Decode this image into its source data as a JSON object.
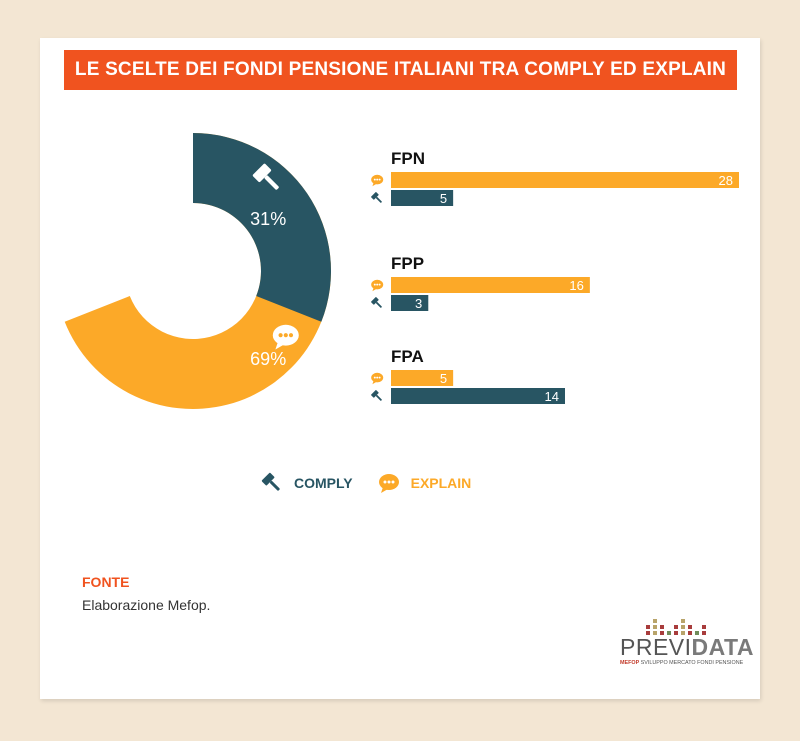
{
  "title": "LE SCELTE DEI FONDI PENSIONE ITALIANI TRA COMPLY ED EXPLAIN",
  "colors": {
    "comply": "#285563",
    "explain": "#fca928",
    "accent": "#f0531f"
  },
  "chart_data": [
    {
      "type": "pie",
      "slices": [
        {
          "name": "COMPLY",
          "value": 31,
          "label": "31%",
          "icon": "gavel-icon"
        },
        {
          "name": "EXPLAIN",
          "value": 69,
          "label": "69%",
          "icon": "speech-bubble-icon"
        }
      ]
    },
    {
      "type": "bar",
      "orientation": "horizontal",
      "categories": [
        "FPN",
        "FPP",
        "FPA"
      ],
      "series": [
        {
          "name": "EXPLAIN",
          "values": [
            28,
            16,
            5
          ]
        },
        {
          "name": "COMPLY",
          "values": [
            5,
            3,
            14
          ]
        }
      ]
    }
  ],
  "legend": [
    {
      "label": "COMPLY",
      "icon": "gavel-icon"
    },
    {
      "label": "EXPLAIN",
      "icon": "speech-bubble-icon"
    }
  ],
  "source": {
    "label": "FONTE",
    "text": "Elaborazione Mefop."
  },
  "logo": {
    "word_a": "PREVI",
    "word_b": "DATA",
    "sub_a": "MEFOP",
    "sub_b": " SVILUPPO MERCATO FONDI PENSIONE"
  }
}
